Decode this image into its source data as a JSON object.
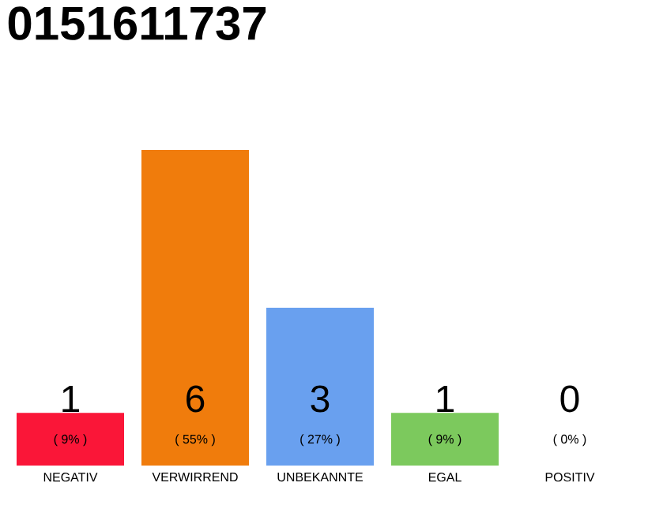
{
  "chart_data": {
    "type": "bar",
    "title": "0151611737",
    "categories": [
      "NEGATIV",
      "VERWIRREND",
      "UNBEKANNTE",
      "EGAL",
      "POSITIV"
    ],
    "values": [
      1,
      6,
      3,
      1,
      0
    ],
    "colors": [
      "#fa1638",
      "#f07c0c",
      "#69a0ef",
      "#7cc95d",
      "#cccccc"
    ],
    "ylim": [
      0,
      6
    ],
    "tick_labels": "x",
    "data_labels": true,
    "annotations": [
      "( 9% )",
      "( 55% )",
      "( 27% )",
      "( 9% )",
      "( 0% )"
    ]
  }
}
